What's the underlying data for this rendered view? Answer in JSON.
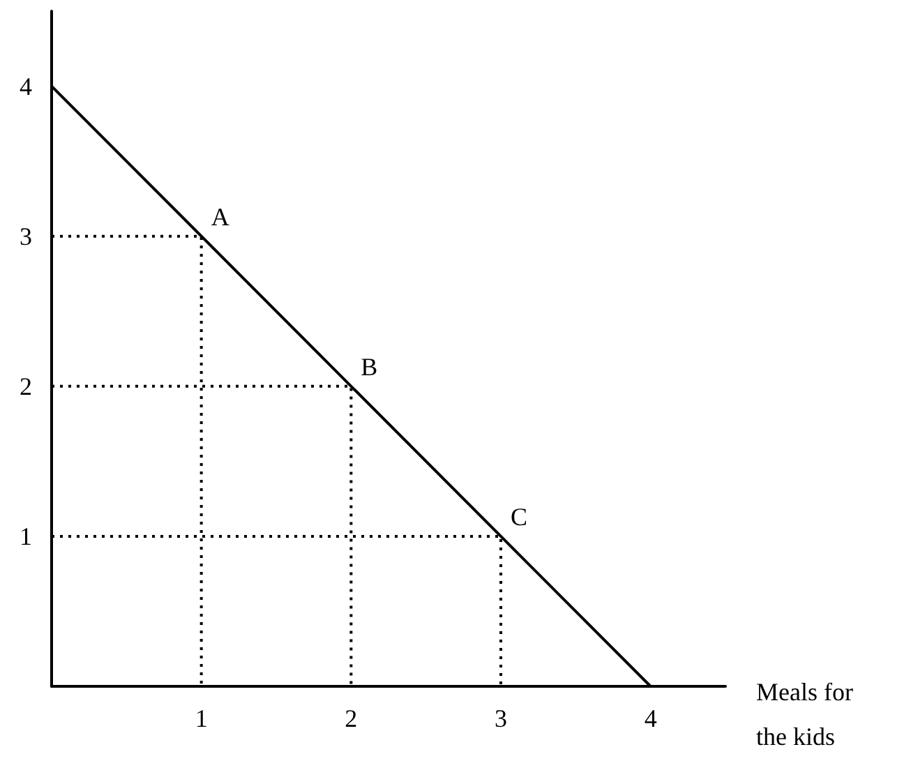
{
  "chart_data": {
    "type": "line",
    "xlabel": "Meals for the kids",
    "x": [
      0,
      4
    ],
    "series": [
      {
        "color": "#000000",
        "values": [
          4,
          0
        ],
        "line_style": "solid"
      },
      {
        "type": "line",
        "x": [
          0,
          1,
          1
        ],
        "color": "#000000",
        "values": [
          3,
          3,
          0
        ],
        "line_style": "dotted"
      },
      {
        "type": "line",
        "x": [
          0,
          2,
          2
        ],
        "color": "#000000",
        "values": [
          2,
          2,
          0
        ],
        "line_style": "dotted"
      },
      {
        "type": "line",
        "x": [
          0,
          3,
          3
        ],
        "color": "#000000",
        "values": [
          1,
          1,
          0
        ],
        "line_style": "dotted"
      }
    ],
    "xlim": [
      0,
      4.5
    ],
    "ylim": [
      0,
      4.5
    ],
    "xticks": [
      1,
      2,
      3,
      4
    ],
    "yticks": [
      1,
      2,
      3,
      4
    ],
    "annotations": [
      {
        "text": "A",
        "x": 1,
        "y": 3
      },
      {
        "text": "B",
        "x": 2,
        "y": 2
      },
      {
        "text": "C",
        "x": 3,
        "y": 1
      }
    ],
    "marker": "none"
  }
}
